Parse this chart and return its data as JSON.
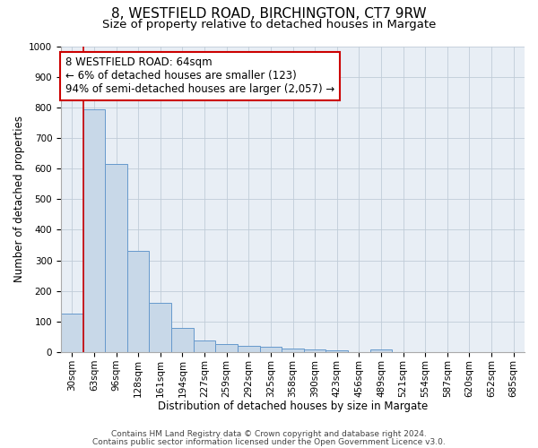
{
  "title": "8, WESTFIELD ROAD, BIRCHINGTON, CT7 9RW",
  "subtitle": "Size of property relative to detached houses in Margate",
  "xlabel": "Distribution of detached houses by size in Margate",
  "ylabel": "Number of detached properties",
  "categories": [
    "30sqm",
    "63sqm",
    "96sqm",
    "128sqm",
    "161sqm",
    "194sqm",
    "227sqm",
    "259sqm",
    "292sqm",
    "325sqm",
    "358sqm",
    "390sqm",
    "423sqm",
    "456sqm",
    "489sqm",
    "521sqm",
    "554sqm",
    "587sqm",
    "620sqm",
    "652sqm",
    "685sqm"
  ],
  "values": [
    125,
    795,
    615,
    330,
    160,
    78,
    38,
    27,
    22,
    17,
    12,
    8,
    7,
    0,
    10,
    0,
    0,
    0,
    0,
    0,
    0
  ],
  "bar_color": "#c8d8e8",
  "bar_edge_color": "#6699cc",
  "vline_x_index": 1,
  "vline_color": "#cc0000",
  "annotation_text": "8 WESTFIELD ROAD: 64sqm\n← 6% of detached houses are smaller (123)\n94% of semi-detached houses are larger (2,057) →",
  "annotation_box_color": "#ffffff",
  "annotation_box_edge": "#cc0000",
  "ylim": [
    0,
    1000
  ],
  "yticks": [
    0,
    100,
    200,
    300,
    400,
    500,
    600,
    700,
    800,
    900,
    1000
  ],
  "footnote1": "Contains HM Land Registry data © Crown copyright and database right 2024.",
  "footnote2": "Contains public sector information licensed under the Open Government Licence v3.0.",
  "background_color": "#ffffff",
  "plot_bg_color": "#e8eef5",
  "grid_color": "#c0ccd8",
  "title_fontsize": 11,
  "subtitle_fontsize": 9.5,
  "axis_label_fontsize": 8.5,
  "tick_fontsize": 7.5,
  "annotation_fontsize": 8.5,
  "footnote_fontsize": 6.5
}
